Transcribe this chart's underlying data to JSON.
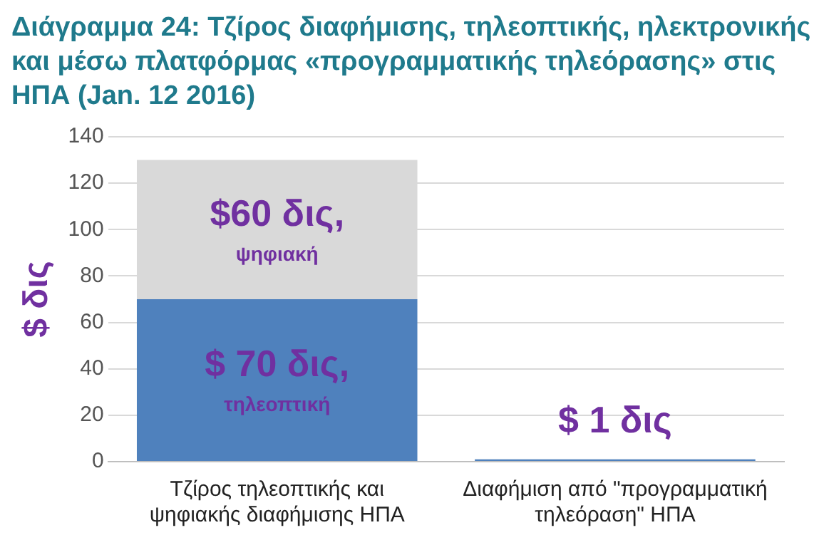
{
  "chart_data": {
    "type": "bar",
    "title": "Διάγραμμα 24: Τζίρος διαφήμισης, τηλεοπτικής, ηλεκτρονικής και μέσω πλατφόρμας «προγραμματικής τηλεόρασης» στις ΗΠΑ (Jan. 12 2016)",
    "ylabel": "$ δις",
    "categories": [
      "Τζίρος τηλεοπτικής και ψηφιακής διαφήμισης ΗΠΑ",
      "Διαφήμιση από \"προγραμματική τηλεόραση\" ΗΠΑ"
    ],
    "stacked": true,
    "series": [
      {
        "color": "#4f81bd",
        "values": [
          70,
          1
        ],
        "value_labels": [
          "$ 70 δις, τηλεοπτική",
          "$ 1 δις"
        ]
      },
      {
        "color": "#d9d9d9",
        "values": [
          60,
          null
        ],
        "value_labels": [
          "$60 δις, ψηφιακή",
          null
        ]
      }
    ],
    "ylim": [
      0,
      140
    ],
    "yticks": [
      0,
      20,
      40,
      60,
      80,
      100,
      120,
      140
    ],
    "grid": "y",
    "legend": false
  }
}
